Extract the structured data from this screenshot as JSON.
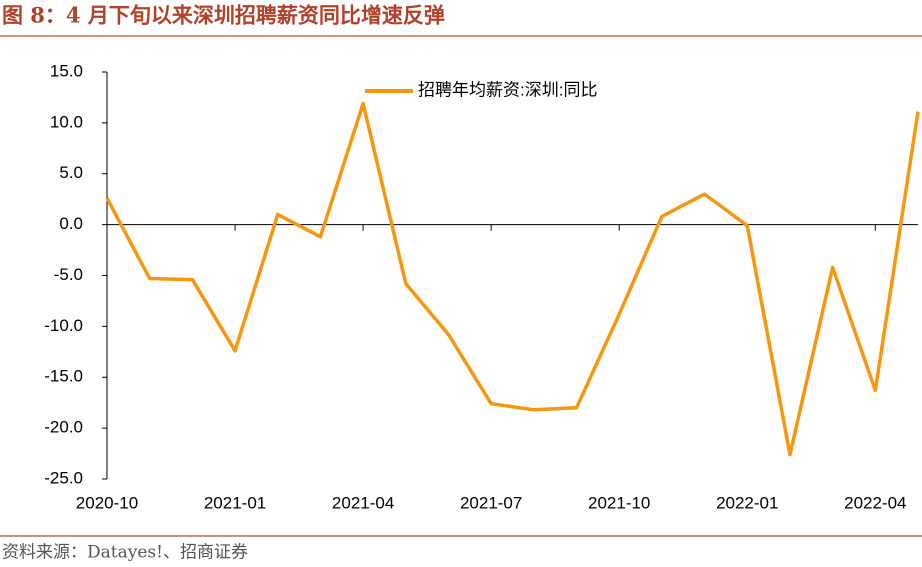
{
  "title": "图 8：4 月下旬以来深圳招聘薪资同比增速反弹",
  "source": "资料来源：Datayes!、招商证券",
  "chart_data": {
    "type": "line",
    "categories": [
      "2020-10",
      null,
      null,
      "2021-01",
      null,
      null,
      "2021-04",
      null,
      null,
      "2021-07",
      null,
      null,
      "2021-10",
      null,
      null,
      "2022-01",
      null,
      null,
      "2022-04",
      null
    ],
    "series": [
      {
        "name": "招聘年均薪资:深圳:同比",
        "color": "#f7960f",
        "values": [
          2.6,
          -5.3,
          -5.4,
          -12.4,
          1.0,
          -1.2,
          11.9,
          -5.8,
          -10.8,
          -17.6,
          -18.2,
          -18.0,
          -8.8,
          0.8,
          3.0,
          -0.1,
          -22.6,
          -4.2,
          -16.3,
          11.1
        ]
      }
    ],
    "ylim": [
      -25,
      15
    ],
    "yticks": [
      {
        "value": -25,
        "label": "-25.0"
      },
      {
        "value": -20,
        "label": "-20.0"
      },
      {
        "value": -15,
        "label": "-15.0"
      },
      {
        "value": -10,
        "label": "-10.0"
      },
      {
        "value": -5,
        "label": "-5.0"
      },
      {
        "value": 0,
        "label": "0.0"
      },
      {
        "value": 5,
        "label": "5.0"
      },
      {
        "value": 10,
        "label": "10.0"
      },
      {
        "value": 15,
        "label": "15.0"
      }
    ],
    "legend": "top"
  }
}
